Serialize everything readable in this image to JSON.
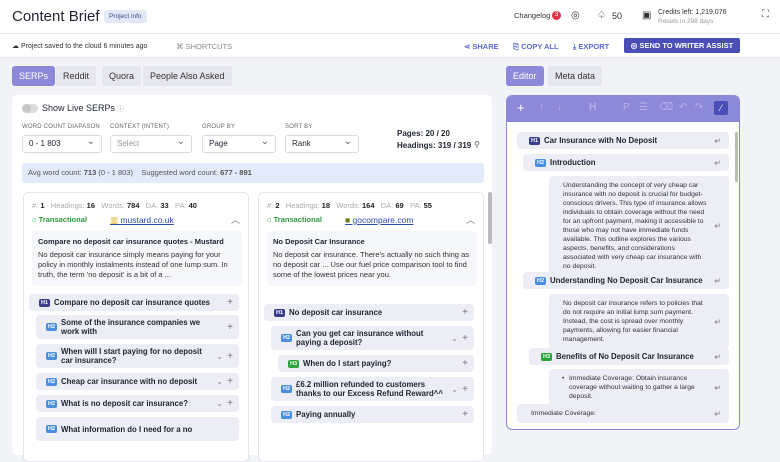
{
  "header": {
    "title": "Content Brief",
    "project_info": "Project info",
    "changelog": "Changelog",
    "changelog_count": "3",
    "notifications": "50",
    "credits": "Credits left: 1,219,076",
    "resets": "Resets in 298 days"
  },
  "toolbar": {
    "saved": "Project saved to the cloud 6 minutes ago",
    "shortcuts": "SHORTCUTS",
    "share": "SHARE",
    "copy_all": "COPY ALL",
    "export": "EXPORT",
    "send": "SEND TO WRITER ASSIST"
  },
  "left_tabs": [
    "SERPs",
    "Reddit",
    "Quora",
    "People Also Asked"
  ],
  "right_tabs": [
    "Editor",
    "Meta data"
  ],
  "serps": {
    "live_label": "Show Live SERPs",
    "filters": [
      {
        "label": "WORD COUNT DIAPASON",
        "value": "0 - 1 803"
      },
      {
        "label": "CONTEXT (INTENT)",
        "value": "Select"
      },
      {
        "label": "GROUP BY",
        "value": "Page"
      },
      {
        "label": "SORT BY",
        "value": "Rank"
      }
    ],
    "pages": "Pages: 20 / 20",
    "headings": "Headings: 319 / 319",
    "avg_label": "Avg word count:",
    "avg_value": "713",
    "avg_range": "(0 - 1 803)",
    "suggested_label": "Suggested word count:",
    "suggested_value": "677 - 891",
    "cards": [
      {
        "rank": "1",
        "headings": "16",
        "words": "784",
        "da": "33",
        "pa": "40",
        "intent": "Transactional",
        "site": "mustard.co.uk",
        "title": "Compare no deposit car insurance quotes - Mustard",
        "desc": "No deposit car insurance simply means paying for your policy in monthly instalments instead of one lump sum. In truth, the term 'no deposit' is a bit of a ...",
        "items": [
          {
            "level": "H1",
            "text": "Compare no deposit car insurance quotes"
          },
          {
            "level": "H2",
            "text": "Some of the insurance companies we work with"
          },
          {
            "level": "H2",
            "text": "When will I start paying for no deposit car insurance?"
          },
          {
            "level": "H2",
            "text": "Cheap car insurance with no deposit"
          },
          {
            "level": "H2",
            "text": "What is no deposit car insurance?"
          },
          {
            "level": "H2",
            "text": "What information do I need for a no"
          }
        ]
      },
      {
        "rank": "2",
        "headings": "18",
        "words": "164",
        "da": "69",
        "pa": "55",
        "intent": "Transactional",
        "site": "gocompare.com",
        "title": "No Deposit Car Insurance",
        "desc": "No deposit car insurance. There's actually no such thing as no deposit car ... Use our fuel price comparison tool to find some of the lowest prices near you.",
        "items": [
          {
            "level": "H1",
            "text": "No deposit car insurance"
          },
          {
            "level": "H2",
            "text": "Can you get car insurance without paying a deposit?"
          },
          {
            "level": "H3",
            "text": "When do I start paying?"
          },
          {
            "level": "H2",
            "text": "£6.2 million refunded to customers thanks to our Excess Refund Reward^^"
          },
          {
            "level": "H2",
            "text": "Paying annually"
          }
        ]
      }
    ],
    "labels": {
      "rank": "#:",
      "headings": "Headings:",
      "words": "Words:",
      "da": "DA:",
      "pa": "PA:"
    }
  },
  "editor": {
    "items": [
      {
        "level": "H1",
        "text": "Car Insurance with No Deposit"
      },
      {
        "level": "H2",
        "text": "Introduction"
      },
      {
        "level": "P",
        "text": "Understanding the concept of very cheap car insurance with no deposit is crucial for budget-conscious drivers. This type of insurance allows individuals to obtain coverage without the need for an upfront payment, making it accessible to those who may not have immediate funds available. This outline explores the various aspects, benefits, and considerations associated with very cheap car insurance with no deposit."
      },
      {
        "level": "H2",
        "text": "Understanding No Deposit Car Insurance"
      },
      {
        "level": "P",
        "text": "No deposit car insurance refers to policies that do not require an initial lump sum payment. Instead, the cost is spread over monthly payments, allowing for easier financial management."
      },
      {
        "level": "H3",
        "text": "Benefits of No Deposit Car Insurance"
      },
      {
        "level": "LI",
        "text": "Immediate Coverage: Obtain insurance coverage without waiting to gather a large deposit."
      },
      {
        "level": "P",
        "text": "Immediate Coverage:"
      }
    ]
  },
  "colors": {
    "accent": "#8c8ad8",
    "button": "#4a4fb8",
    "h1": "#3a3c8c",
    "h2": "#4a8ee0",
    "h3": "#2aa33a",
    "transactional": "#2e9a3e"
  }
}
